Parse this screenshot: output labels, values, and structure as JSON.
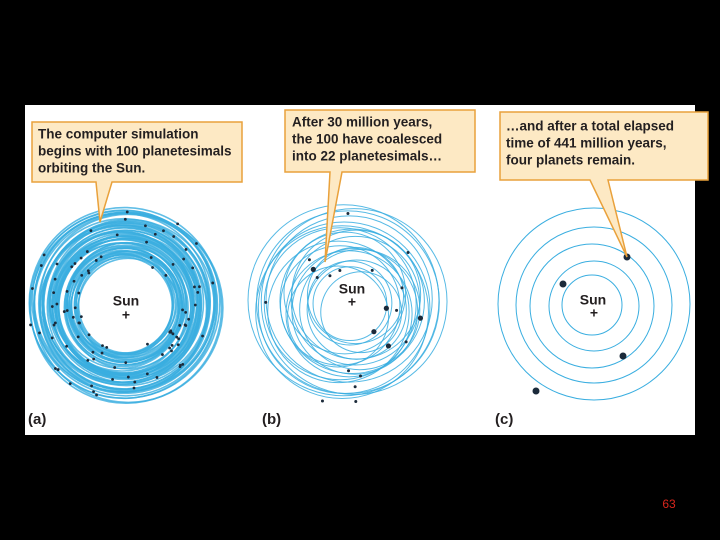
{
  "panels": [
    {
      "label": "(a)",
      "caption": [
        "The computer simulation",
        "begins with 100 planetesimals",
        "orbiting the Sun."
      ],
      "sun": "Sun"
    },
    {
      "label": "(b)",
      "caption": [
        "After 30 million years,",
        "the 100 have coalesced",
        "into 22 planetesimals…"
      ],
      "sun": "Sun"
    },
    {
      "label": "(c)",
      "caption": [
        "…and after a total elapsed",
        "time of 441 million years,",
        "four planets remain."
      ],
      "sun": "Sun"
    }
  ],
  "page_number": "63"
}
